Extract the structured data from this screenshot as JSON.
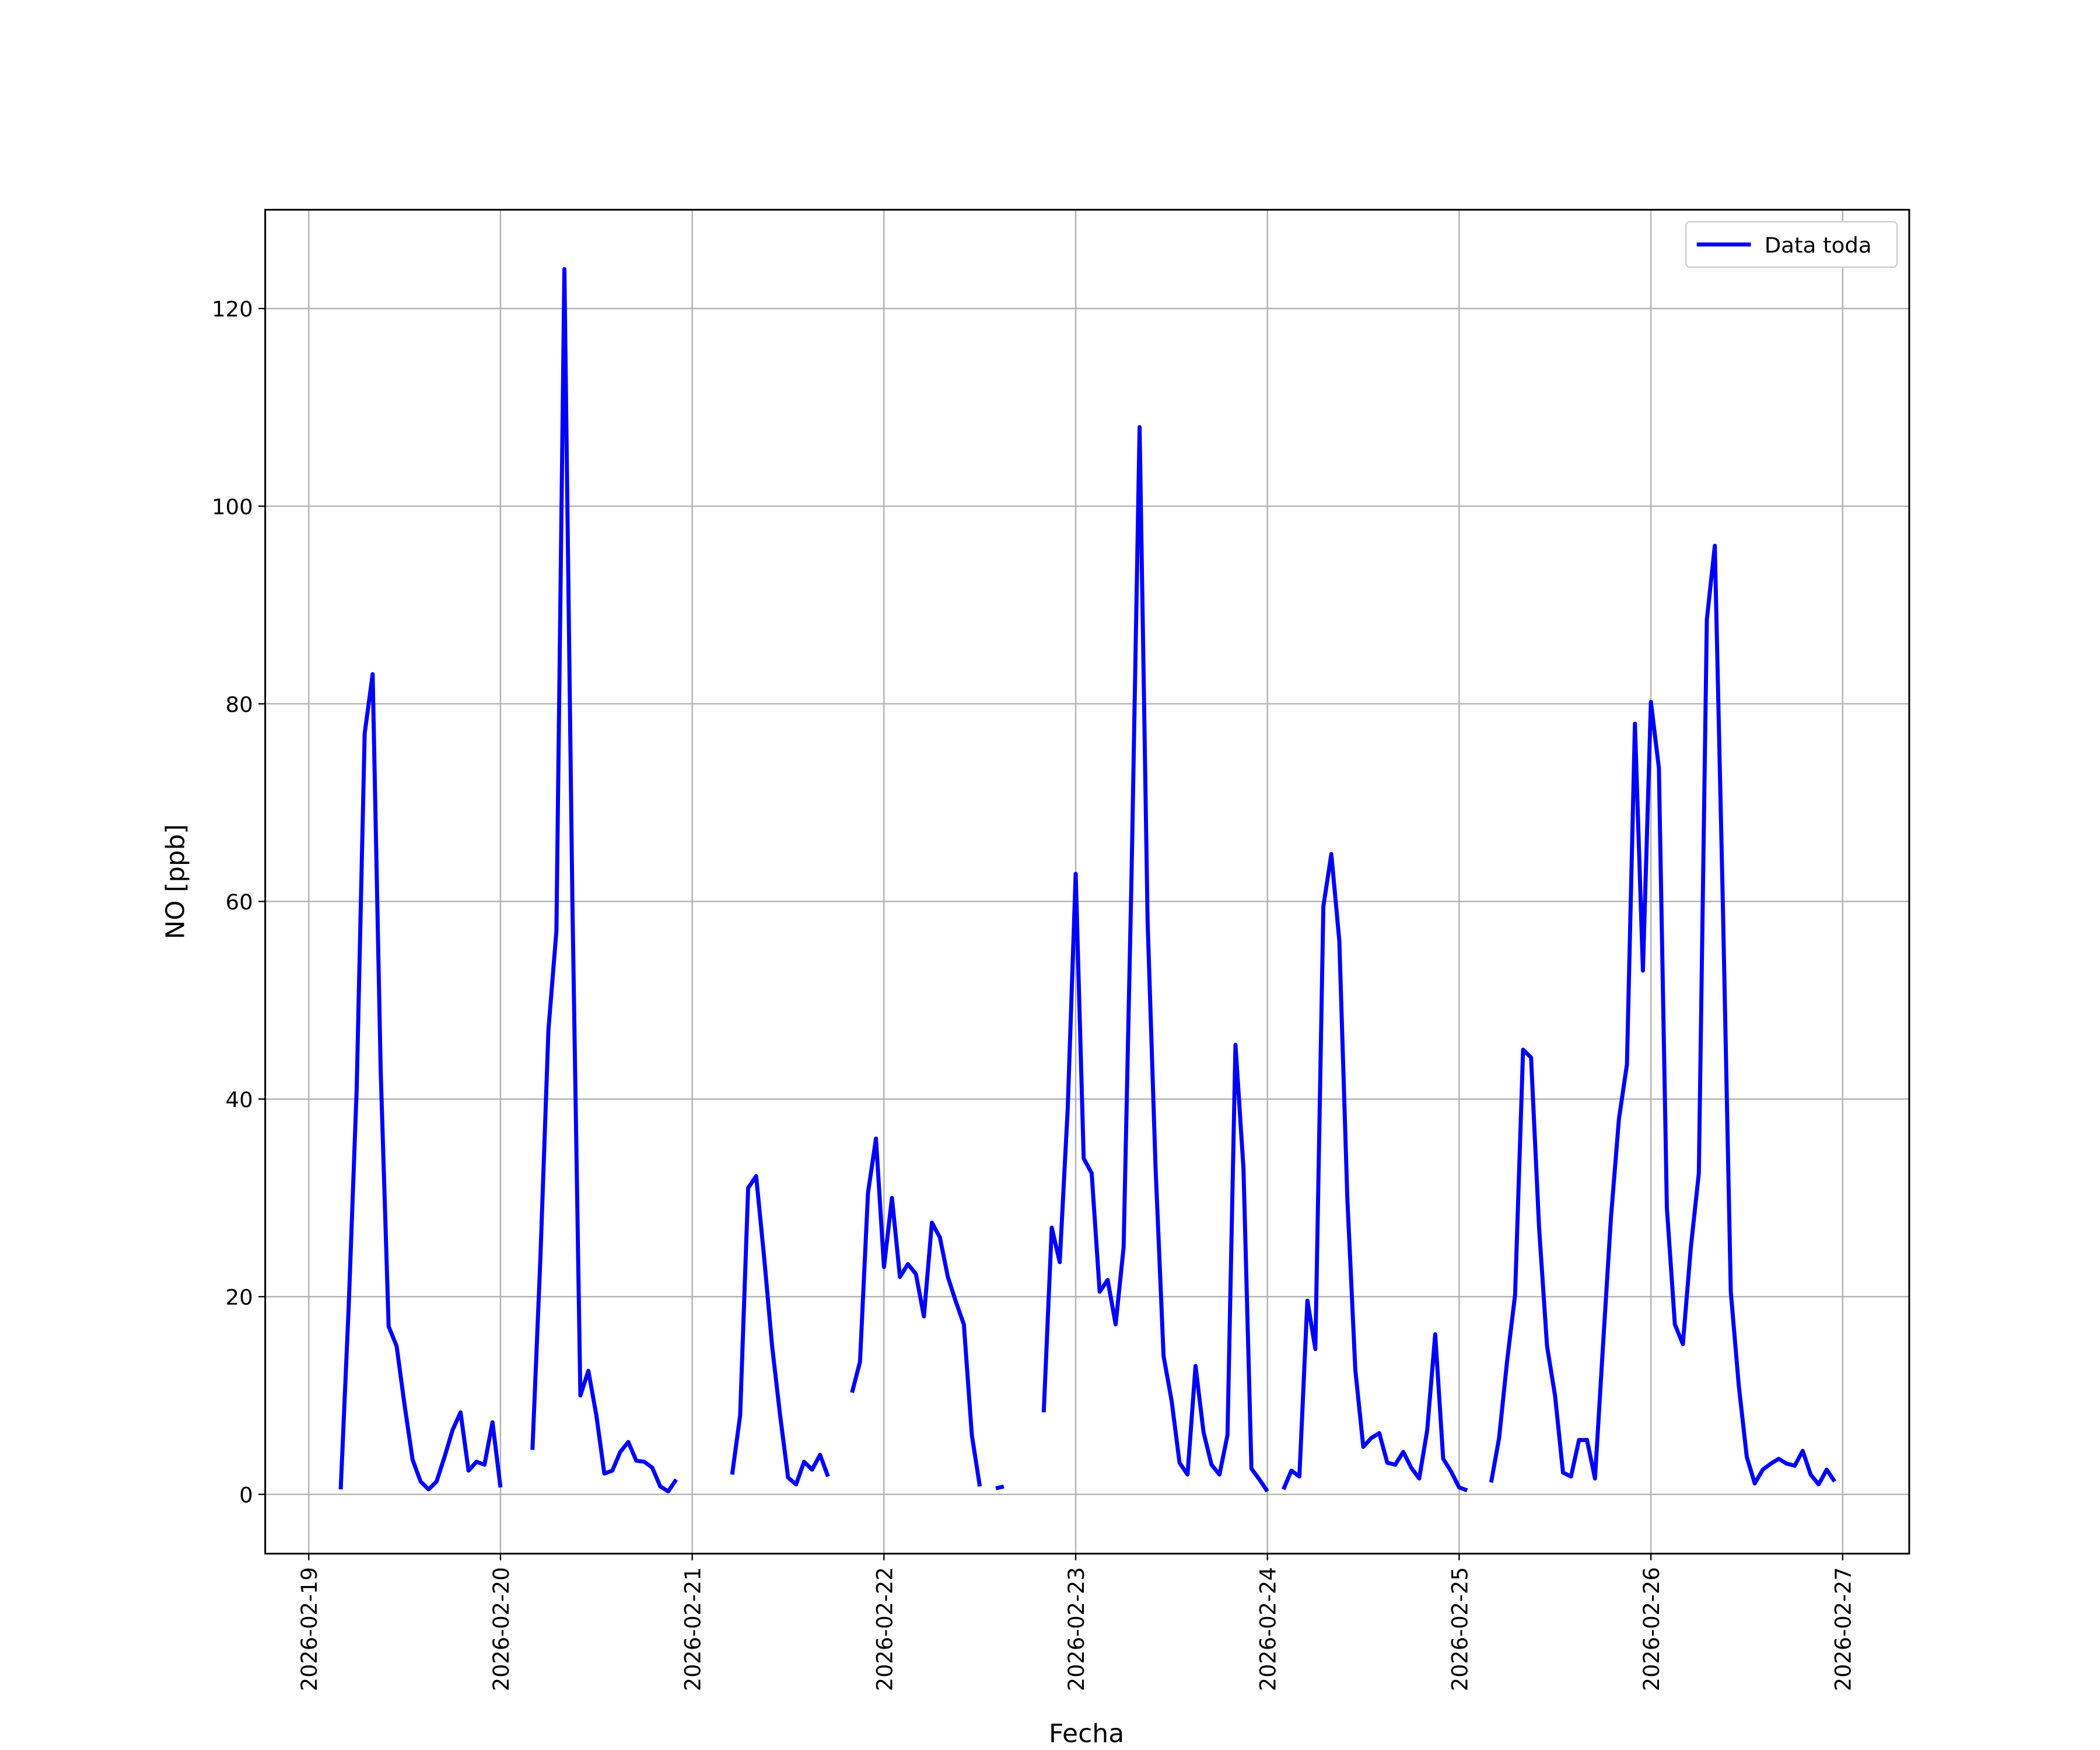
{
  "chart_data": {
    "type": "line",
    "xlabel": "Fecha",
    "ylabel": "NO [ppb]",
    "x": [
      "2026-02-19 04:00",
      "2026-02-19 05:00",
      "2026-02-19 06:00",
      "2026-02-19 07:00",
      "2026-02-19 08:00",
      "2026-02-19 09:00",
      "2026-02-19 10:00",
      "2026-02-19 11:00",
      "2026-02-19 12:00",
      "2026-02-19 13:00",
      "2026-02-19 14:00",
      "2026-02-19 15:00",
      "2026-02-19 16:00",
      "2026-02-19 17:00",
      "2026-02-19 18:00",
      "2026-02-19 19:00",
      "2026-02-19 20:00",
      "2026-02-19 21:00",
      "2026-02-19 22:00",
      "2026-02-19 23:00",
      "2026-02-20 00:00",
      "2026-02-20 01:00",
      "2026-02-20 02:00",
      "2026-02-20 03:00",
      "2026-02-20 04:00",
      "2026-02-20 05:00",
      "2026-02-20 06:00",
      "2026-02-20 07:00",
      "2026-02-20 08:00",
      "2026-02-20 09:00",
      "2026-02-20 10:00",
      "2026-02-20 11:00",
      "2026-02-20 12:00",
      "2026-02-20 13:00",
      "2026-02-20 14:00",
      "2026-02-20 15:00",
      "2026-02-20 16:00",
      "2026-02-20 17:00",
      "2026-02-20 18:00",
      "2026-02-20 19:00",
      "2026-02-20 20:00",
      "2026-02-20 21:00",
      "2026-02-20 22:00",
      "2026-02-20 23:00",
      "2026-02-21 00:00",
      "2026-02-21 01:00",
      "2026-02-21 02:00",
      "2026-02-21 03:00",
      "2026-02-21 04:00",
      "2026-02-21 05:00",
      "2026-02-21 06:00",
      "2026-02-21 07:00",
      "2026-02-21 08:00",
      "2026-02-21 09:00",
      "2026-02-21 10:00",
      "2026-02-21 11:00",
      "2026-02-21 12:00",
      "2026-02-21 13:00",
      "2026-02-21 14:00",
      "2026-02-21 15:00",
      "2026-02-21 16:00",
      "2026-02-21 17:00",
      "2026-02-21 18:00",
      "2026-02-21 19:00",
      "2026-02-21 20:00",
      "2026-02-21 21:00",
      "2026-02-21 22:00",
      "2026-02-21 23:00",
      "2026-02-22 00:00",
      "2026-02-22 01:00",
      "2026-02-22 02:00",
      "2026-02-22 03:00",
      "2026-02-22 04:00",
      "2026-02-22 05:00",
      "2026-02-22 06:00",
      "2026-02-22 07:00",
      "2026-02-22 08:00",
      "2026-02-22 09:00",
      "2026-02-22 10:00",
      "2026-02-22 11:00",
      "2026-02-22 12:00",
      "2026-02-22 13:00",
      "2026-02-22 14:00",
      "2026-02-22 15:00",
      "2026-02-22 16:00",
      "2026-02-22 17:00",
      "2026-02-22 18:00",
      "2026-02-22 19:00",
      "2026-02-22 20:00",
      "2026-02-22 21:00",
      "2026-02-22 22:00",
      "2026-02-22 23:00",
      "2026-02-23 00:00",
      "2026-02-23 01:00",
      "2026-02-23 02:00",
      "2026-02-23 03:00",
      "2026-02-23 04:00",
      "2026-02-23 05:00",
      "2026-02-23 06:00",
      "2026-02-23 07:00",
      "2026-02-23 08:00",
      "2026-02-23 09:00",
      "2026-02-23 10:00",
      "2026-02-23 11:00",
      "2026-02-23 12:00",
      "2026-02-23 13:00",
      "2026-02-23 14:00",
      "2026-02-23 15:00",
      "2026-02-23 16:00",
      "2026-02-23 17:00",
      "2026-02-23 18:00",
      "2026-02-23 19:00",
      "2026-02-23 20:00",
      "2026-02-23 21:00",
      "2026-02-23 22:00",
      "2026-02-23 23:00",
      "2026-02-24 00:00",
      "2026-02-24 01:00",
      "2026-02-24 02:00",
      "2026-02-24 03:00",
      "2026-02-24 04:00",
      "2026-02-24 05:00",
      "2026-02-24 06:00",
      "2026-02-24 07:00",
      "2026-02-24 08:00",
      "2026-02-24 09:00",
      "2026-02-24 10:00",
      "2026-02-24 11:00",
      "2026-02-24 12:00",
      "2026-02-24 13:00",
      "2026-02-24 14:00",
      "2026-02-24 15:00",
      "2026-02-24 16:00",
      "2026-02-24 17:00",
      "2026-02-24 18:00",
      "2026-02-24 19:00",
      "2026-02-24 20:00",
      "2026-02-24 21:00",
      "2026-02-24 22:00",
      "2026-02-24 23:00",
      "2026-02-25 00:00",
      "2026-02-25 01:00",
      "2026-02-25 02:00",
      "2026-02-25 03:00",
      "2026-02-25 04:00",
      "2026-02-25 05:00",
      "2026-02-25 06:00",
      "2026-02-25 07:00",
      "2026-02-25 08:00",
      "2026-02-25 09:00",
      "2026-02-25 10:00",
      "2026-02-25 11:00",
      "2026-02-25 12:00",
      "2026-02-25 13:00",
      "2026-02-25 14:00",
      "2026-02-25 15:00",
      "2026-02-25 16:00",
      "2026-02-25 17:00",
      "2026-02-25 18:00",
      "2026-02-25 19:00",
      "2026-02-25 20:00",
      "2026-02-25 21:00",
      "2026-02-25 22:00",
      "2026-02-25 23:00",
      "2026-02-26 00:00",
      "2026-02-26 01:00",
      "2026-02-26 02:00",
      "2026-02-26 03:00",
      "2026-02-26 04:00",
      "2026-02-26 05:00",
      "2026-02-26 06:00",
      "2026-02-26 07:00",
      "2026-02-26 08:00",
      "2026-02-26 09:00",
      "2026-02-26 10:00",
      "2026-02-26 11:00",
      "2026-02-26 12:00",
      "2026-02-26 13:00",
      "2026-02-26 14:00",
      "2026-02-26 15:00",
      "2026-02-26 16:00",
      "2026-02-26 17:00",
      "2026-02-26 18:00",
      "2026-02-26 19:00",
      "2026-02-26 20:00",
      "2026-02-26 21:00",
      "2026-02-26 22:00",
      "2026-02-26 23:00"
    ],
    "series": [
      {
        "name": "Data toda",
        "color": "#0000ff",
        "values": [
          0.5,
          19,
          41,
          77,
          83,
          43,
          17,
          15,
          9,
          3.5,
          1.3,
          0.5,
          1.3,
          3.8,
          6.5,
          8.3,
          2.4,
          3.3,
          3,
          7.3,
          0.7,
          null,
          null,
          null,
          4.5,
          24,
          47,
          57,
          124,
          60,
          10,
          12.5,
          8,
          2.1,
          2.4,
          4.3,
          5.3,
          3.4,
          3.3,
          2.7,
          0.8,
          0.3,
          1.5,
          null,
          null,
          null,
          null,
          null,
          null,
          2,
          8,
          31,
          32.2,
          24,
          15,
          8,
          1.7,
          1,
          3.3,
          2.5,
          4,
          1.8,
          null,
          null,
          10.3,
          13.4,
          30.5,
          36,
          23,
          30,
          22,
          23.3,
          22.3,
          18,
          27.5,
          26,
          22,
          19.5,
          17.2,
          6,
          0.8,
          null,
          0.6,
          0.8,
          null,
          null,
          null,
          null,
          8.3,
          27,
          23.5,
          39,
          62.8,
          34,
          32.5,
          20.5,
          21.7,
          17.2,
          25,
          63,
          108,
          58,
          33,
          14,
          9.5,
          3.2,
          2,
          13,
          6.3,
          3,
          2,
          6,
          45.5,
          33,
          2.6,
          1.5,
          0.3,
          null,
          0.5,
          2.4,
          1.8,
          19.6,
          14.7,
          59.5,
          64.8,
          56,
          30,
          12.6,
          4.8,
          5.7,
          6.2,
          3.2,
          3,
          4.3,
          2.7,
          1.6,
          6.5,
          16.2,
          3.6,
          2.3,
          0.7,
          0.4,
          null,
          null,
          1.2,
          5.7,
          13.5,
          20.2,
          45,
          44.2,
          27,
          15,
          10,
          2.2,
          1.8,
          5.5,
          5.5,
          1.6,
          15,
          28,
          38,
          43.5,
          78,
          53,
          80.2,
          73.5,
          29,
          17.2,
          15.2,
          25,
          32.5,
          88.5,
          96,
          60,
          20.5,
          11,
          3.8,
          1.1,
          2.5,
          3.1,
          3.6,
          3.1,
          2.9,
          4.4,
          2,
          1,
          2.5,
          1.3
        ]
      }
    ],
    "xlim": [
      "2026-02-18 18:33",
      "2026-02-27 08:20"
    ],
    "xticks": [
      "2026-02-19",
      "2026-02-20",
      "2026-02-21",
      "2026-02-22",
      "2026-02-23",
      "2026-02-24",
      "2026-02-25",
      "2026-02-26",
      "2026-02-27"
    ],
    "ylim": [
      -6,
      130
    ],
    "yticks": [
      0,
      20,
      40,
      60,
      80,
      100,
      120
    ],
    "grid": true,
    "legend": "upper right"
  }
}
